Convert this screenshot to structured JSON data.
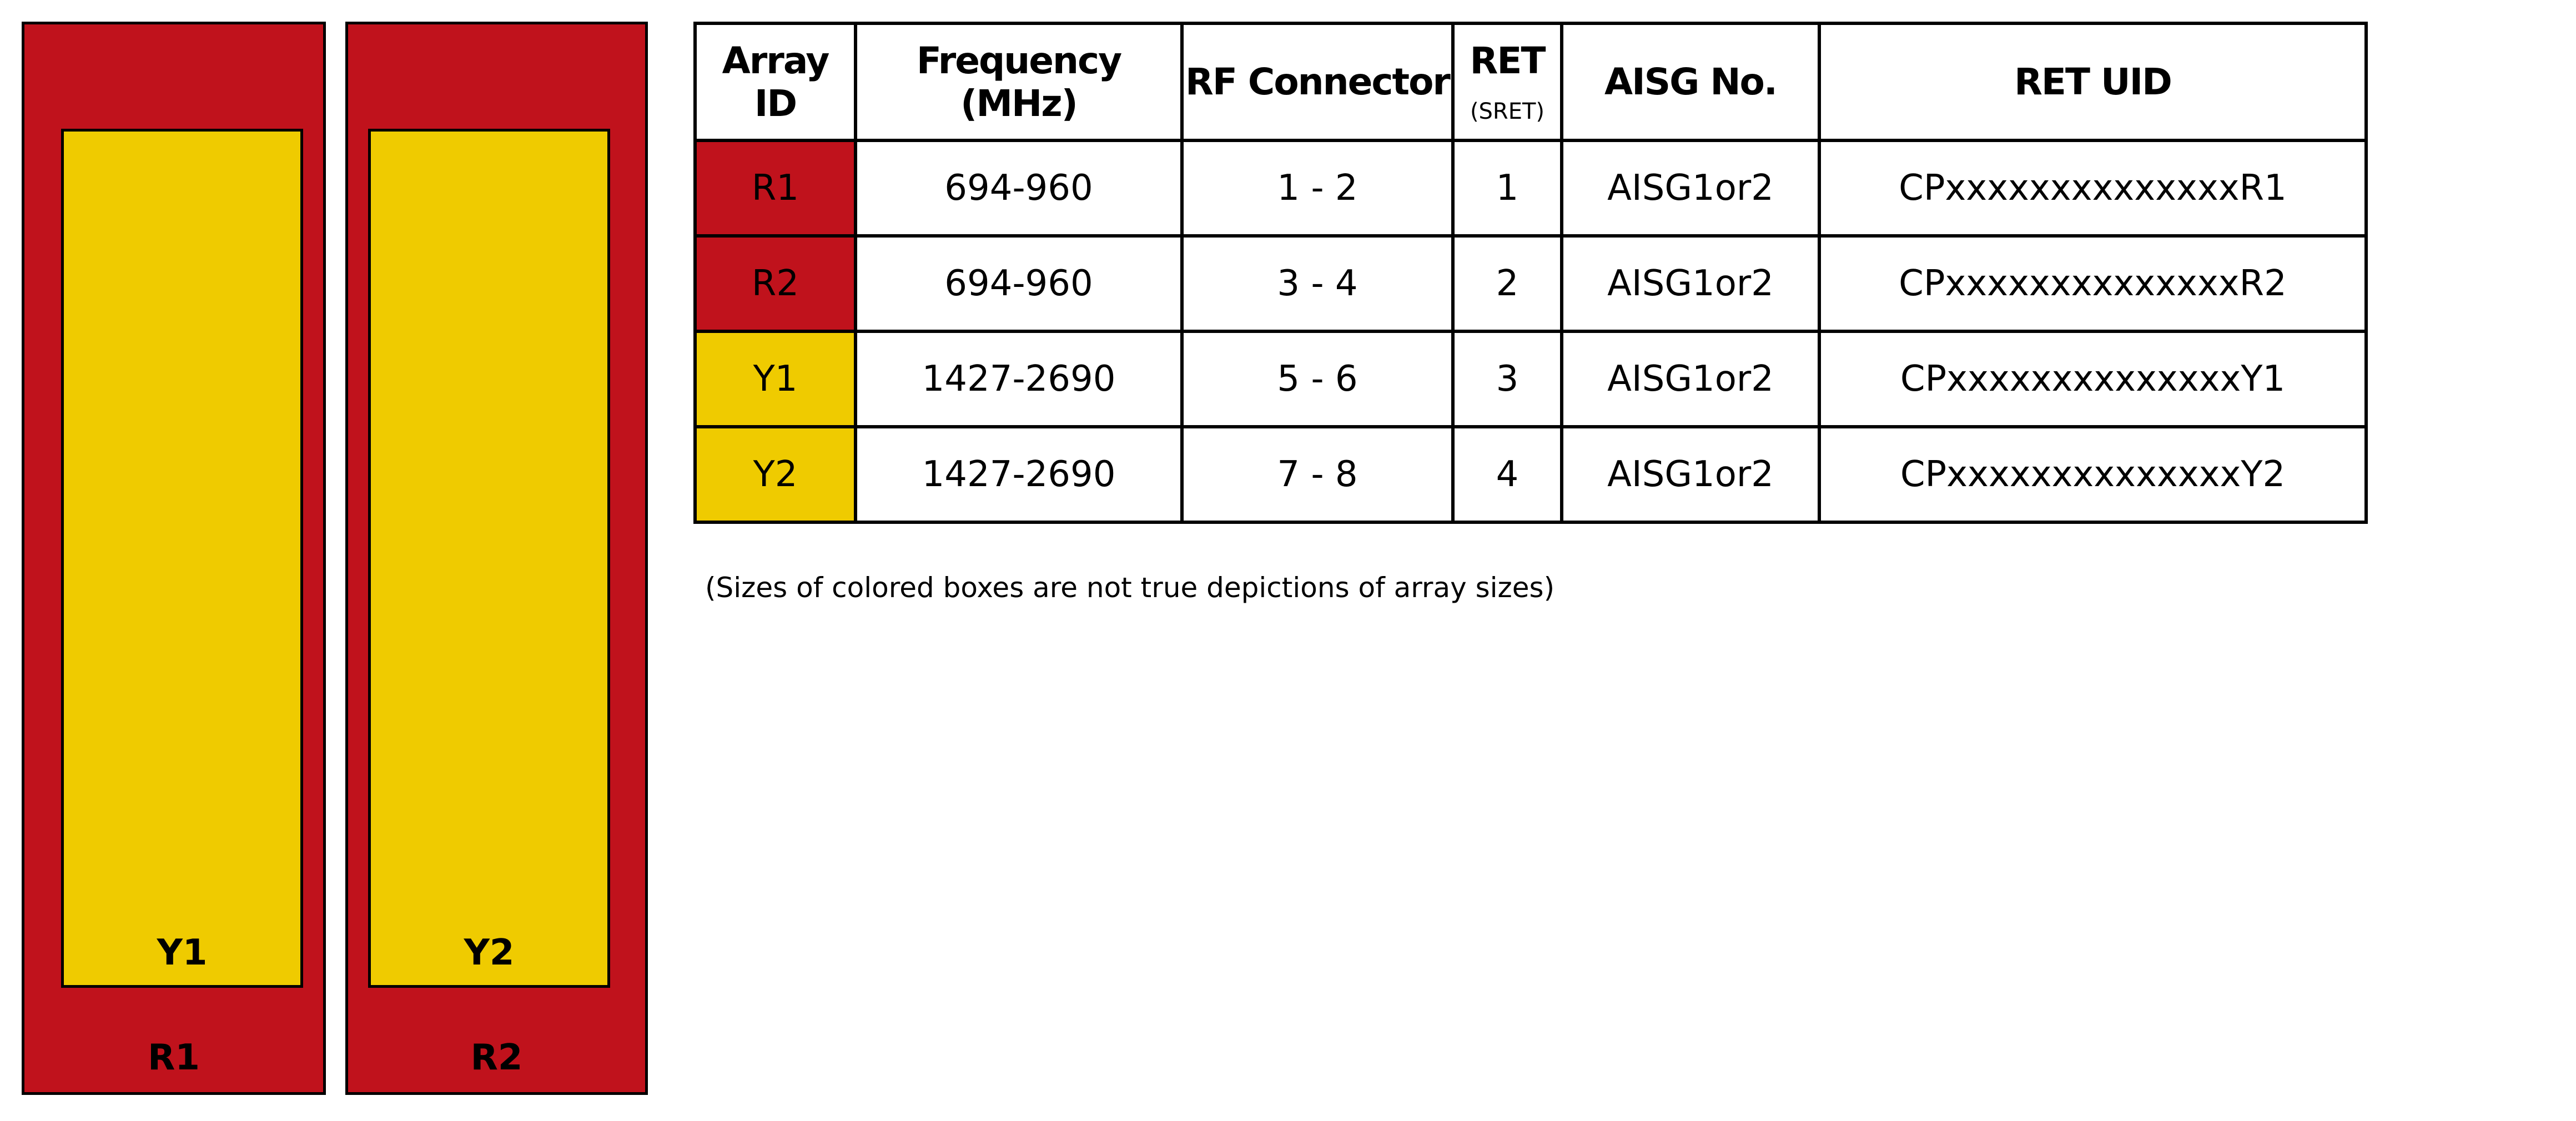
{
  "colors": {
    "red": "#c0121c",
    "yellow": "#efcb00"
  },
  "diagram": {
    "outer_arrays": [
      {
        "label": "R1",
        "inner_label": "Y1"
      },
      {
        "label": "R2",
        "inner_label": "Y2"
      }
    ]
  },
  "table": {
    "headers": {
      "array_id": "Array ID",
      "frequency": "Frequency (MHz)",
      "rf_connector": "RF Connector",
      "ret": "RET",
      "ret_sub": "(SRET)",
      "aisg": "AISG No.",
      "ret_uid": "RET UID"
    },
    "rows": [
      {
        "id": "R1",
        "color": "red",
        "freq": "694-960",
        "rf": "1 - 2",
        "ret": "1",
        "aisg": "AISG1or2",
        "uid": "CPxxxxxxxxxxxxxxR1"
      },
      {
        "id": "R2",
        "color": "red",
        "freq": "694-960",
        "rf": "3 - 4",
        "ret": "2",
        "aisg": "AISG1or2",
        "uid": "CPxxxxxxxxxxxxxxR2"
      },
      {
        "id": "Y1",
        "color": "yellow",
        "freq": "1427-2690",
        "rf": "5 - 6",
        "ret": "3",
        "aisg": "AISG1or2",
        "uid": "CPxxxxxxxxxxxxxxY1"
      },
      {
        "id": "Y2",
        "color": "yellow",
        "freq": "1427-2690",
        "rf": "7 - 8",
        "ret": "4",
        "aisg": "AISG1or2",
        "uid": "CPxxxxxxxxxxxxxxY2"
      }
    ]
  },
  "note": "(Sizes of colored boxes are not true depictions of array sizes)"
}
